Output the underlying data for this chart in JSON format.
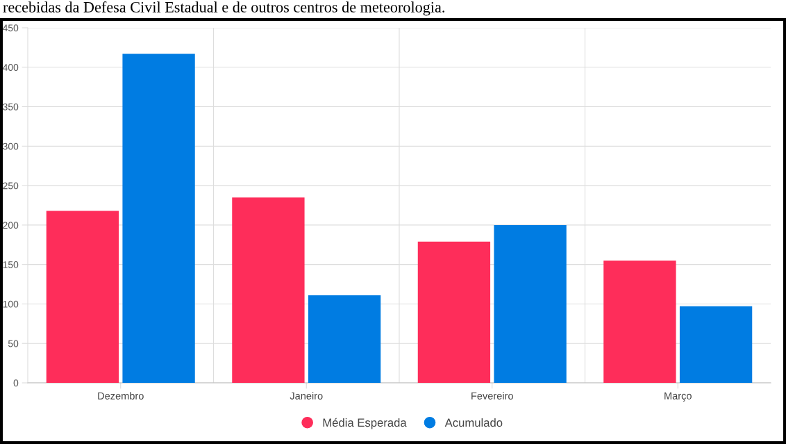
{
  "chart_data": {
    "type": "bar",
    "annotations": [
      "recebidas da Defesa Civil Estadual e de outros centros de meteorologia."
    ],
    "categories": [
      "Dezembro",
      "Janeiro",
      "Fevereiro",
      "Março"
    ],
    "series": [
      {
        "name": "Média Esperada",
        "color": "#fe2d5a",
        "values": [
          218,
          235,
          179,
          155
        ]
      },
      {
        "name": "Acumulado",
        "color": "#007ce2",
        "values": [
          417,
          111,
          200,
          97
        ]
      }
    ],
    "ylim": [
      0,
      450
    ],
    "yticks": [
      0,
      50,
      100,
      150,
      200,
      250,
      300,
      350,
      400,
      450
    ],
    "grid": true,
    "legend": "bottom"
  }
}
